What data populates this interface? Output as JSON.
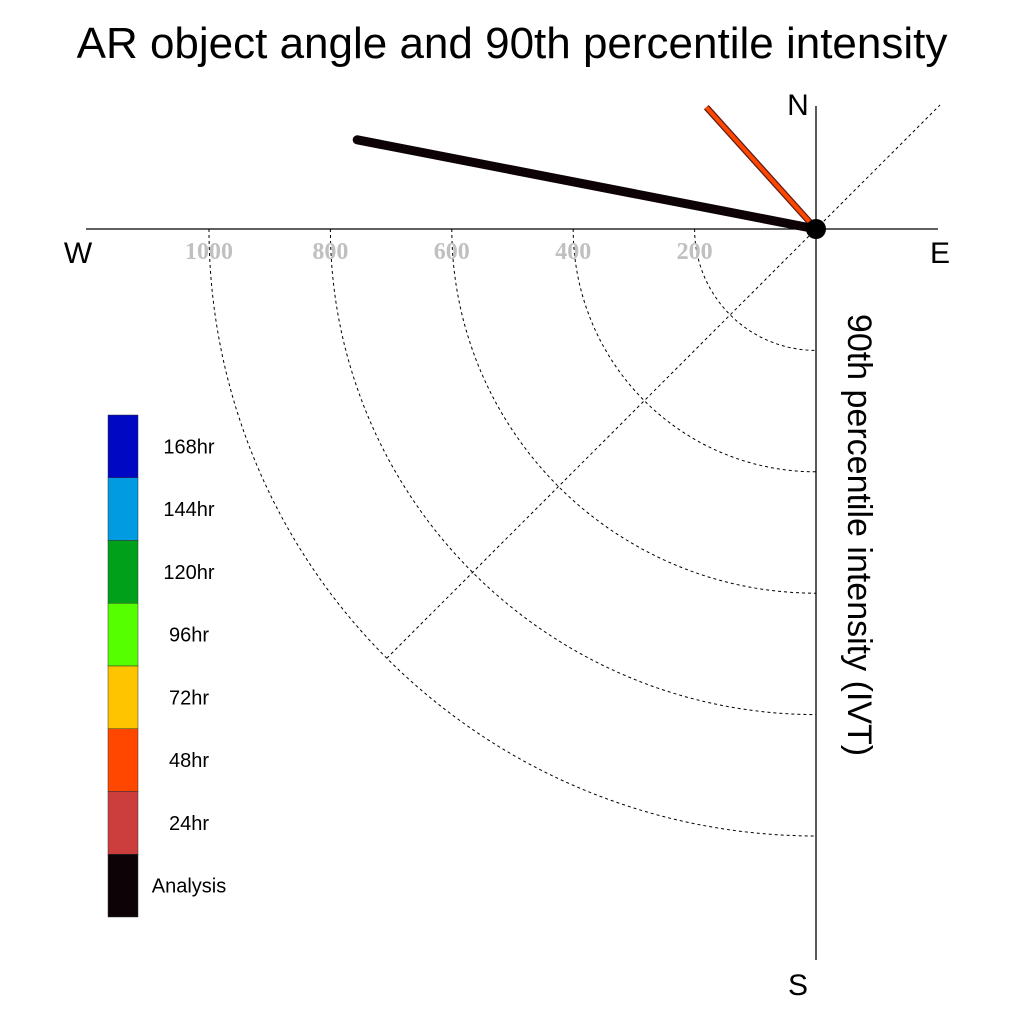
{
  "chart_data": {
    "type": "polar-vector",
    "title": "AR object angle and 90th percentile intensity",
    "ylabel": "90th percentile intensity (IVT)",
    "compass": {
      "north": "N",
      "south": "S",
      "east": "E",
      "west": "W"
    },
    "radial_ticks": [
      200,
      400,
      600,
      800,
      1000
    ],
    "radial_tick_labels": [
      "200",
      "400",
      "600",
      "800",
      "1000"
    ],
    "rmax": 1000,
    "grid": true,
    "legend_position": "bottom-left",
    "legend": [
      {
        "label": "168hr",
        "color": "#0008c4"
      },
      {
        "label": "144hr",
        "color": "#009be0"
      },
      {
        "label": "120hr",
        "color": "#00a01a"
      },
      {
        "label": "96hr",
        "color": "#55ff00"
      },
      {
        "label": "72hr",
        "color": "#ffc400"
      },
      {
        "label": "48hr",
        "color": "#ff4700"
      },
      {
        "label": "24hr",
        "color": "#cc3d3d"
      },
      {
        "label": "Analysis",
        "color": "#0d0206"
      }
    ],
    "series": [
      {
        "name": "72hr",
        "angle_deg": 318,
        "value": 270,
        "color": "#ffc400"
      },
      {
        "name": "48hr",
        "angle_deg": 318,
        "value": 270,
        "color": "#ff4700"
      },
      {
        "name": "24hr",
        "angle_deg": 281,
        "value": 775,
        "color": "#cc3d3d"
      },
      {
        "name": "Analysis",
        "angle_deg": 281,
        "value": 770,
        "color": "#0d0206"
      }
    ]
  }
}
